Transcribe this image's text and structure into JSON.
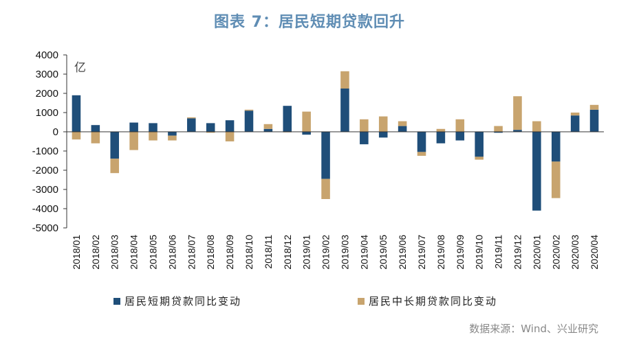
{
  "title": "图表 7：居民短期贷款回升",
  "source": "数据来源：Wind、兴业研究",
  "colors": {
    "short": "#1f4e79",
    "long": "#c8a46e"
  },
  "chart_data": {
    "type": "bar",
    "stacked": true,
    "unit": "亿",
    "ylim": [
      -5000,
      4000
    ],
    "yticks": [
      4000,
      3000,
      2000,
      1000,
      0,
      -1000,
      -2000,
      -3000,
      -4000,
      -5000
    ],
    "categories": [
      "2018/01",
      "2018/02",
      "2018/03",
      "2018/04",
      "2018/05",
      "2018/06",
      "2018/07",
      "2018/08",
      "2018/09",
      "2018/10",
      "2018/11",
      "2018/12",
      "2019/01",
      "2019/02",
      "2019/03",
      "2019/04",
      "2019/05",
      "2019/06",
      "2019/07",
      "2019/08",
      "2019/09",
      "2019/10",
      "2019/11",
      "2019/12",
      "2020/01",
      "2020/02",
      "2020/03",
      "2020/04"
    ],
    "series": [
      {
        "name": "居民短期贷款同比变动",
        "values": [
          1900,
          350,
          -1400,
          480,
          450,
          -200,
          700,
          450,
          600,
          1100,
          150,
          1350,
          -150,
          -2450,
          2250,
          -650,
          -300,
          300,
          -1050,
          -600,
          -450,
          -1300,
          -50,
          100,
          -4100,
          -1550,
          850,
          1150
        ]
      },
      {
        "name": "居民中长期贷款同比变动",
        "values": [
          -400,
          -600,
          -750,
          -950,
          -450,
          -250,
          50,
          -50,
          -500,
          50,
          250,
          -30,
          1050,
          -1050,
          900,
          650,
          800,
          250,
          -200,
          150,
          650,
          -150,
          300,
          1750,
          550,
          -1900,
          150,
          250
        ]
      }
    ]
  }
}
